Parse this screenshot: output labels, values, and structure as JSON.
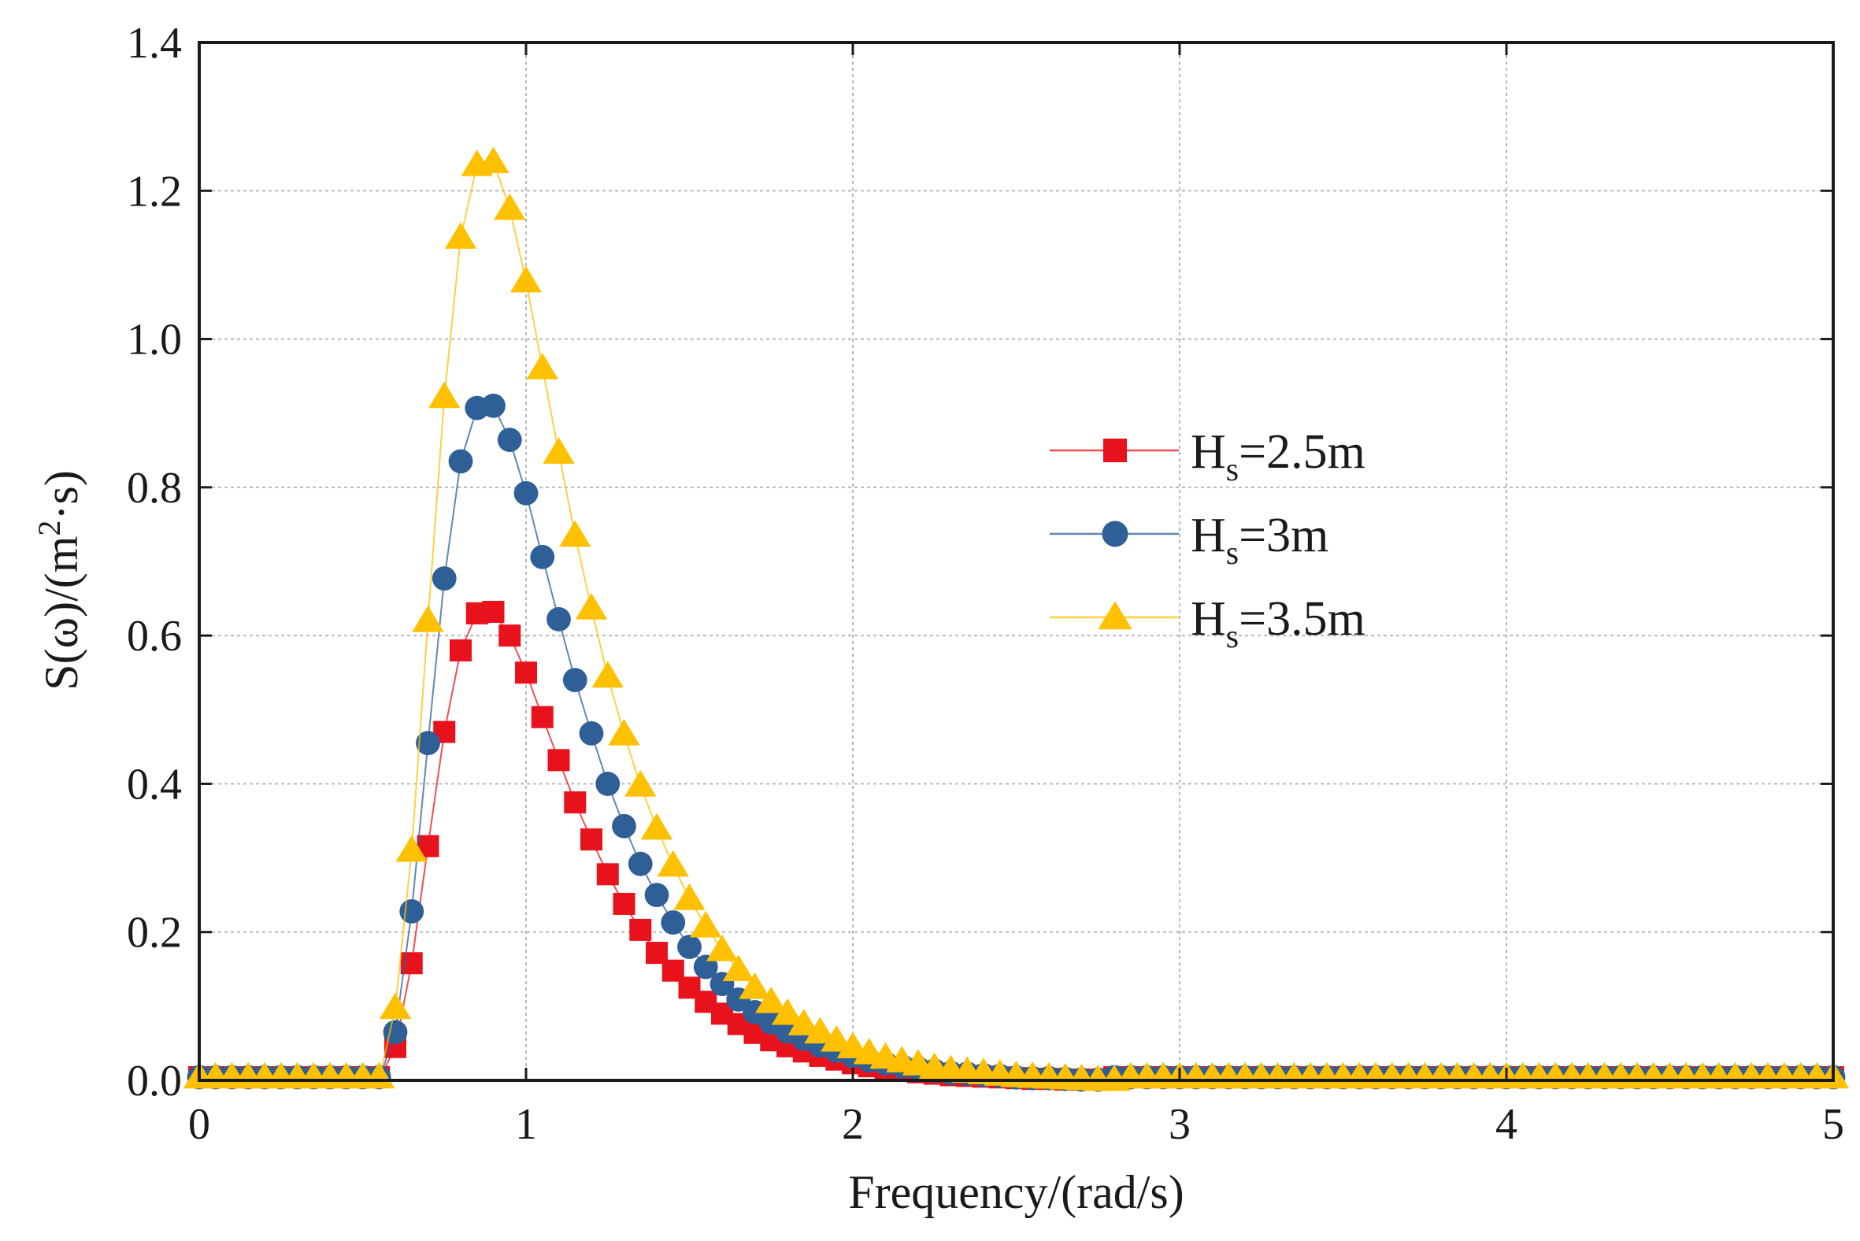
{
  "chart_data": {
    "type": "line",
    "title": "",
    "xlabel": "Frequency/(rad/s)",
    "ylabel": "S(ω)/(m²·s)",
    "ylabel_parts": {
      "prefix": "S(ω)/(m",
      "sup": "2",
      "suffix": "·s)"
    },
    "xlim": [
      0,
      5
    ],
    "ylim": [
      0,
      1.4
    ],
    "xticks": [
      0,
      1,
      2,
      3,
      4,
      5
    ],
    "yticks": [
      0.0,
      0.2,
      0.4,
      0.6,
      0.8,
      1.0,
      1.2,
      1.4
    ],
    "xtick_labels": [
      "0",
      "1",
      "2",
      "3",
      "4",
      "5"
    ],
    "ytick_labels": [
      "0.0",
      "0.2",
      "0.4",
      "0.6",
      "0.8",
      "1.0",
      "1.2",
      "1.4"
    ],
    "grid": true,
    "legend_position": "center-right",
    "x": [
      0.0,
      0.05,
      0.1,
      0.15,
      0.2,
      0.25,
      0.3,
      0.35,
      0.4,
      0.45,
      0.5,
      0.55,
      0.6,
      0.65,
      0.7,
      0.75,
      0.8,
      0.85,
      0.9,
      0.95,
      1.0,
      1.05,
      1.1,
      1.15,
      1.2,
      1.25,
      1.3,
      1.35,
      1.4,
      1.45,
      1.5,
      1.55,
      1.6,
      1.65,
      1.7,
      1.75,
      1.8,
      1.85,
      1.9,
      1.95,
      2.0,
      2.05,
      2.1,
      2.15,
      2.2,
      2.25,
      2.3,
      2.35,
      2.4,
      2.45,
      2.5,
      2.55,
      2.6,
      2.65,
      2.7,
      2.75,
      2.8,
      2.85,
      2.9,
      2.95,
      3.0,
      3.05,
      3.1,
      3.15,
      3.2,
      3.25,
      3.3,
      3.35,
      3.4,
      3.45,
      3.5,
      3.55,
      3.6,
      3.65,
      3.7,
      3.75,
      3.8,
      3.85,
      3.9,
      3.95,
      4.0,
      4.05,
      4.1,
      4.15,
      4.2,
      4.25,
      4.3,
      4.35,
      4.4,
      4.45,
      4.5,
      4.55,
      4.6,
      4.65,
      4.7,
      4.75,
      4.8,
      4.85,
      4.9,
      4.95,
      5.0
    ],
    "series": [
      {
        "name": "Hs=2.5m",
        "label_main": "H",
        "label_sub": "s",
        "label_rest": "=2.5m",
        "marker": "square",
        "color": "#e8121d",
        "values": [
          0.0,
          0.0,
          0.0,
          0.0,
          0.0,
          0.0,
          0.0,
          0.0,
          0.0,
          0.0,
          0.0,
          0.0,
          0.045,
          0.158,
          0.316,
          0.47,
          0.58,
          0.63,
          0.632,
          0.6,
          0.55,
          0.49,
          0.432,
          0.375,
          0.325,
          0.278,
          0.238,
          0.203,
          0.172,
          0.148,
          0.125,
          0.106,
          0.09,
          0.076,
          0.064,
          0.054,
          0.046,
          0.039,
          0.033,
          0.028,
          0.023,
          0.019,
          0.016,
          0.013,
          0.011,
          0.009,
          0.007,
          0.006,
          0.005,
          0.004,
          0.003,
          0.002,
          0.002,
          0.001,
          0.001,
          0.001,
          0.0,
          0.0,
          0.0,
          0.0,
          0.0,
          0.0,
          0.0,
          0.0,
          0.0,
          0.0,
          0.0,
          0.0,
          0.0,
          0.0,
          0.0,
          0.0,
          0.0,
          0.0,
          0.0,
          0.0,
          0.0,
          0.0,
          0.0,
          0.0,
          0.0,
          0.0,
          0.0,
          0.0,
          0.0,
          0.0,
          0.0,
          0.0,
          0.0,
          0.0,
          0.0,
          0.0,
          0.0,
          0.0,
          0.0,
          0.0,
          0.0,
          0.0,
          0.0,
          0.0,
          0.0
        ]
      },
      {
        "name": "Hs=3m",
        "label_main": "H",
        "label_sub": "s",
        "label_rest": "=3m",
        "marker": "circle",
        "color": "#2f5f97",
        "values": [
          0.0,
          0.0,
          0.0,
          0.0,
          0.0,
          0.0,
          0.0,
          0.0,
          0.0,
          0.0,
          0.0,
          0.0,
          0.065,
          0.228,
          0.455,
          0.677,
          0.835,
          0.907,
          0.91,
          0.864,
          0.792,
          0.706,
          0.622,
          0.54,
          0.468,
          0.4,
          0.343,
          0.292,
          0.25,
          0.213,
          0.18,
          0.153,
          0.13,
          0.109,
          0.092,
          0.078,
          0.066,
          0.056,
          0.047,
          0.04,
          0.033,
          0.027,
          0.023,
          0.019,
          0.016,
          0.013,
          0.01,
          0.009,
          0.007,
          0.006,
          0.004,
          0.003,
          0.003,
          0.002,
          0.001,
          0.001,
          0.0,
          0.0,
          0.0,
          0.0,
          0.0,
          0.0,
          0.0,
          0.0,
          0.0,
          0.0,
          0.0,
          0.0,
          0.0,
          0.0,
          0.0,
          0.0,
          0.0,
          0.0,
          0.0,
          0.0,
          0.0,
          0.0,
          0.0,
          0.0,
          0.0,
          0.0,
          0.0,
          0.0,
          0.0,
          0.0,
          0.0,
          0.0,
          0.0,
          0.0,
          0.0,
          0.0,
          0.0,
          0.0,
          0.0,
          0.0,
          0.0,
          0.0,
          0.0,
          0.0,
          0.0
        ]
      },
      {
        "name": "Hs=3.5m",
        "label_main": "H",
        "label_sub": "s",
        "label_rest": "=3.5m",
        "marker": "triangle",
        "color": "#ffc000",
        "values": [
          0.0,
          0.0,
          0.0,
          0.0,
          0.0,
          0.0,
          0.0,
          0.0,
          0.0,
          0.0,
          0.0,
          0.0,
          0.098,
          0.31,
          0.62,
          0.922,
          1.137,
          1.235,
          1.239,
          1.176,
          1.078,
          0.961,
          0.847,
          0.735,
          0.637,
          0.545,
          0.467,
          0.398,
          0.34,
          0.29,
          0.245,
          0.208,
          0.176,
          0.149,
          0.125,
          0.106,
          0.09,
          0.076,
          0.065,
          0.054,
          0.045,
          0.037,
          0.031,
          0.026,
          0.022,
          0.017,
          0.014,
          0.012,
          0.01,
          0.008,
          0.006,
          0.005,
          0.004,
          0.003,
          0.002,
          0.001,
          0.001,
          0.0,
          0.0,
          0.0,
          0.0,
          0.0,
          0.0,
          0.0,
          0.0,
          0.0,
          0.0,
          0.0,
          0.0,
          0.0,
          0.0,
          0.0,
          0.0,
          0.0,
          0.0,
          0.0,
          0.0,
          0.0,
          0.0,
          0.0,
          0.0,
          0.0,
          0.0,
          0.0,
          0.0,
          0.0,
          0.0,
          0.0,
          0.0,
          0.0,
          0.0,
          0.0,
          0.0,
          0.0,
          0.0,
          0.0,
          0.0,
          0.0,
          0.0,
          0.0,
          0.0
        ]
      }
    ]
  }
}
